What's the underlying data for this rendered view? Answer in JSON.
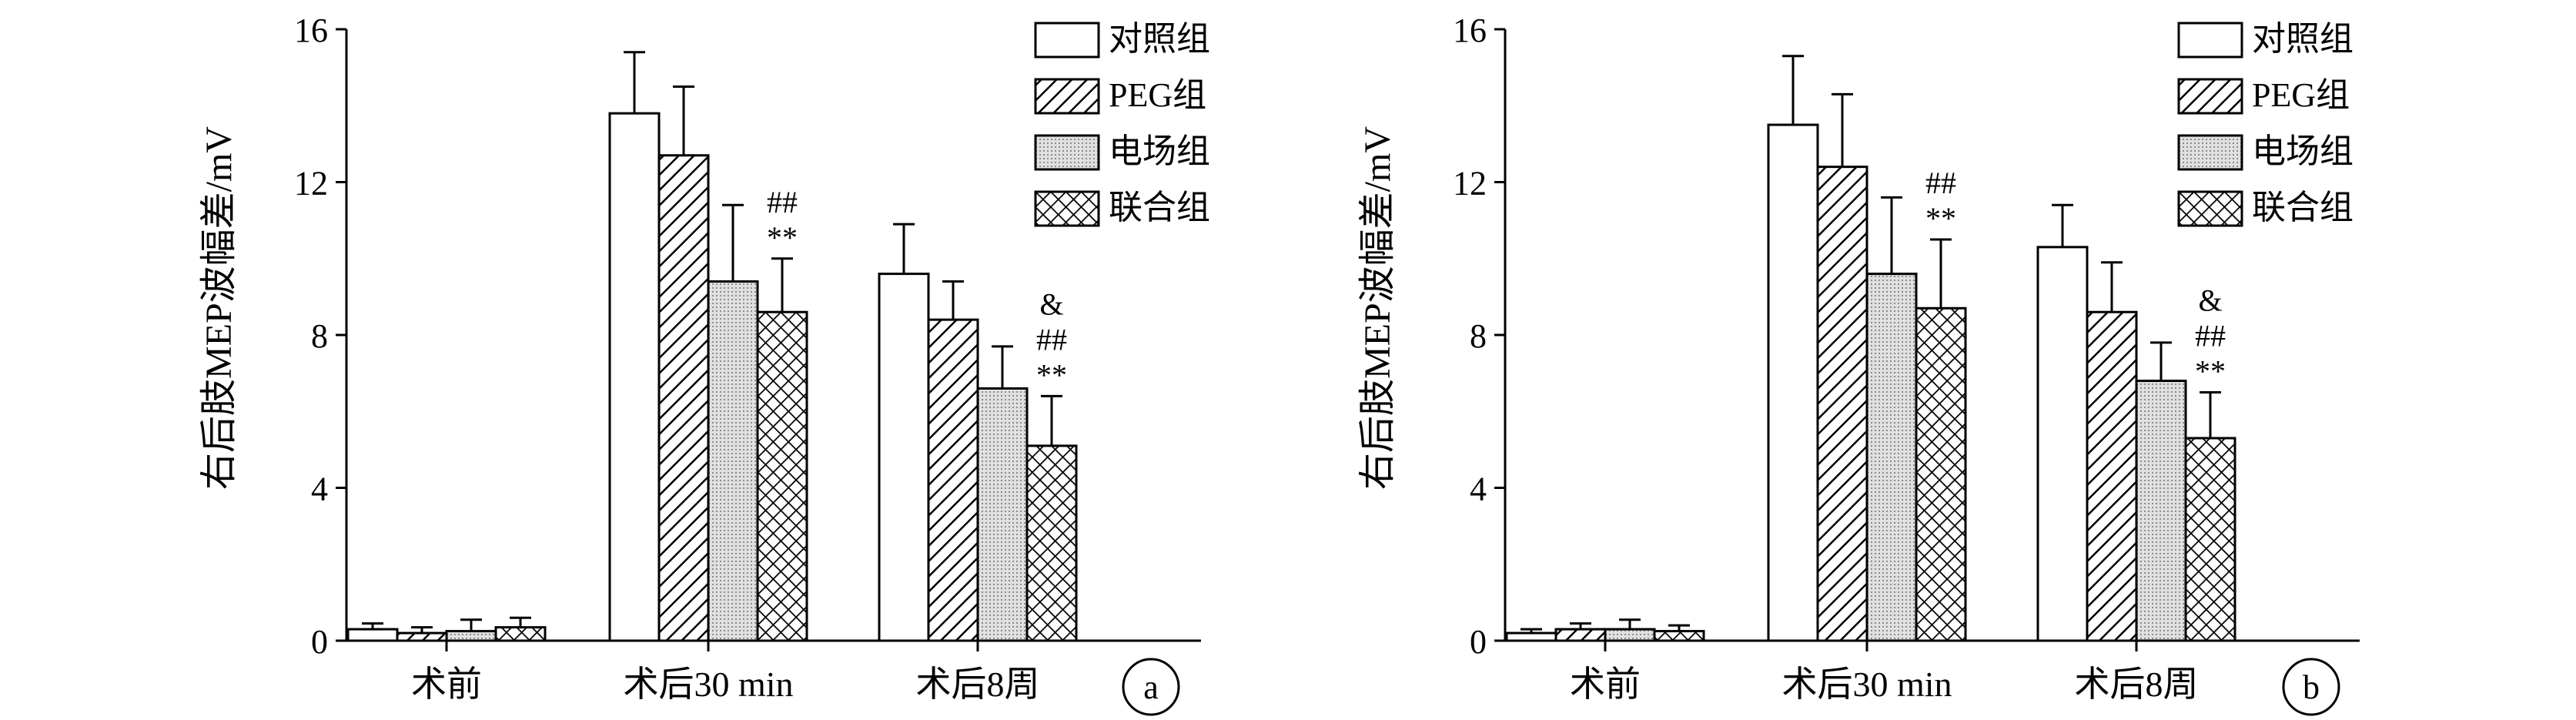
{
  "colors": {
    "ink": "#000000",
    "fill_control": "#ffffff",
    "fill_peg": "hatch-diagonal",
    "fill_efield": "light-gray-dotted",
    "fill_combined": "crosshatch"
  },
  "chart_data": [
    {
      "panel_label": "a",
      "type": "bar",
      "ylabel": "右后肢MEP波幅差/mV",
      "ylim": [
        0,
        16
      ],
      "yticks": [
        "0",
        "4",
        "8",
        "12",
        "16"
      ],
      "categories": [
        "术前",
        "术后30 min",
        "术后8周"
      ],
      "legend": {
        "placement": "top-right",
        "entries": [
          "对照组",
          "PEG组",
          "电场组",
          "联合组"
        ]
      },
      "series": [
        {
          "name": "对照组",
          "pattern": "blank",
          "values": [
            0.3,
            13.8,
            9.6
          ],
          "errors": [
            0.15,
            1.6,
            1.3
          ]
        },
        {
          "name": "PEG组",
          "pattern": "diagonal",
          "values": [
            0.2,
            12.7,
            8.4
          ],
          "errors": [
            0.15,
            1.8,
            1.0
          ]
        },
        {
          "name": "电场组",
          "pattern": "dotted",
          "values": [
            0.25,
            9.4,
            6.6
          ],
          "errors": [
            0.3,
            2.0,
            1.1
          ]
        },
        {
          "name": "联合组",
          "pattern": "cross",
          "values": [
            0.35,
            8.6,
            5.1
          ],
          "errors": [
            0.25,
            1.4,
            1.3
          ]
        }
      ],
      "annotations": [
        {
          "category": 1,
          "series": 3,
          "lines": [
            "##",
            "**"
          ]
        },
        {
          "category": 2,
          "series": 3,
          "lines": [
            "&",
            "##",
            "**"
          ]
        }
      ]
    },
    {
      "panel_label": "b",
      "type": "bar",
      "ylabel": "右后肢MEP波幅差/mV",
      "ylim": [
        0,
        16
      ],
      "yticks": [
        "0",
        "4",
        "8",
        "12",
        "16"
      ],
      "categories": [
        "术前",
        "术后30 min",
        "术后8周"
      ],
      "legend": {
        "placement": "top-right",
        "entries": [
          "对照组",
          "PEG组",
          "电场组",
          "联合组"
        ]
      },
      "series": [
        {
          "name": "对照组",
          "pattern": "blank",
          "values": [
            0.2,
            13.5,
            10.3
          ],
          "errors": [
            0.1,
            1.8,
            1.1
          ]
        },
        {
          "name": "PEG组",
          "pattern": "diagonal",
          "values": [
            0.3,
            12.4,
            8.6
          ],
          "errors": [
            0.15,
            1.9,
            1.3
          ]
        },
        {
          "name": "电场组",
          "pattern": "dotted",
          "values": [
            0.3,
            9.6,
            6.8
          ],
          "errors": [
            0.25,
            2.0,
            1.0
          ]
        },
        {
          "name": "联合组",
          "pattern": "cross",
          "values": [
            0.25,
            8.7,
            5.3
          ],
          "errors": [
            0.15,
            1.8,
            1.2
          ]
        }
      ],
      "annotations": [
        {
          "category": 1,
          "series": 3,
          "lines": [
            "##",
            "**"
          ]
        },
        {
          "category": 2,
          "series": 3,
          "lines": [
            "&",
            "##",
            "**"
          ]
        }
      ]
    }
  ]
}
